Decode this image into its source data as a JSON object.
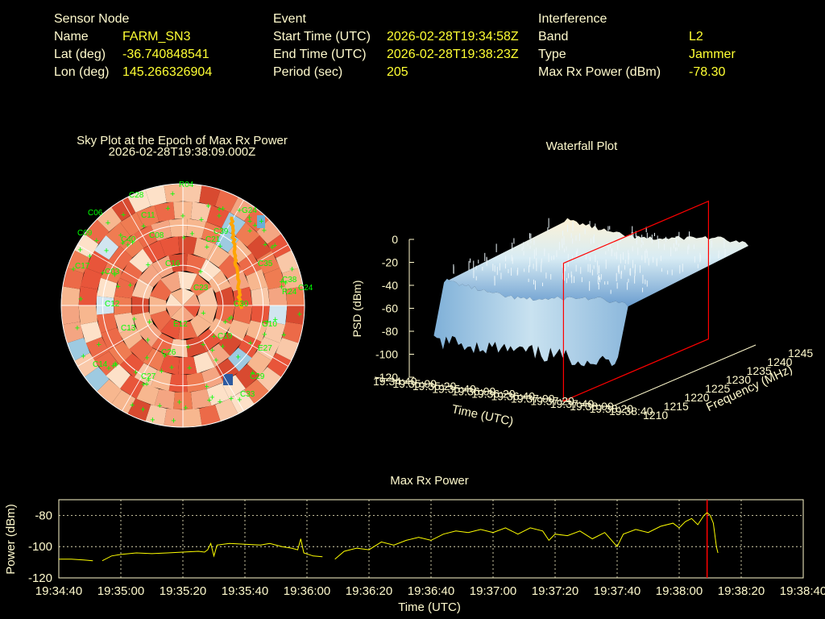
{
  "header": {
    "sensor_node": {
      "heading": "Sensor Node",
      "rows": [
        {
          "label": "Name",
          "value": "FARM_SN3"
        },
        {
          "label": "Lat (deg)",
          "value": "-36.740848541"
        },
        {
          "label": "Lon (deg)",
          "value": "145.266326904"
        }
      ]
    },
    "event": {
      "heading": "Event",
      "rows": [
        {
          "label": "Start Time (UTC)",
          "value": "2026-02-28T19:34:58Z"
        },
        {
          "label": "End Time (UTC)",
          "value": "2026-02-28T19:38:23Z"
        },
        {
          "label": "Period (sec)",
          "value": "205"
        }
      ]
    },
    "interference": {
      "heading": "Interference",
      "rows": [
        {
          "label": "Band",
          "value": "L2"
        },
        {
          "label": "Type",
          "value": "Jammer"
        },
        {
          "label": "Max Rx Power (dBm)",
          "value": "-78.30"
        }
      ]
    }
  },
  "colors": {
    "background": "#000000",
    "label_text": "#fffacd",
    "value_text": "#ffff33",
    "satellite_label": "#00ff00",
    "track": "#ffa500",
    "marker": "#ff0000",
    "line": "#ffff00"
  },
  "chart_data": [
    {
      "type": "scatter",
      "title": "Sky Plot at the Epoch of Max Rx Power",
      "subtitle": "2026-02-28T19:38:09.000Z",
      "satellite_labels": [
        "R04",
        "C06",
        "C09",
        "C24",
        "C33",
        "G24",
        "C16",
        "C03",
        "G10",
        "C17",
        "C13",
        "C19",
        "C14",
        "C29",
        "C08",
        "C21",
        "C28",
        "C35",
        "C26",
        "C23",
        "C12",
        "C30",
        "C27",
        "C38",
        "C39",
        "C40",
        "E12",
        "E27",
        "R24",
        "C11"
      ],
      "grid": true
    },
    {
      "type": "area",
      "title": "Waterfall Plot",
      "zlabel": "PSD (dBm)",
      "xlabel": "Time (UTC)",
      "ylabel": "Frequency (MHz)",
      "z_ticks": [
        "0",
        "-20",
        "-40",
        "-60",
        "-80",
        "-100",
        "-120"
      ],
      "time_ticks": [
        "19:34:40",
        "19:35:00",
        "19:35:20",
        "19:35:40",
        "19:36:00",
        "19:36:20",
        "19:36:40",
        "19:37:00",
        "19:37:20",
        "19:37:40",
        "19:38:00",
        "19:38:20",
        "19:38:40"
      ],
      "freq_ticks": [
        "1210",
        "1215",
        "1220",
        "1225",
        "1230",
        "1235",
        "1240",
        "1245"
      ],
      "zlim": [
        -120,
        0
      ],
      "flim": [
        1210,
        1245
      ],
      "psd_level_dbm": -40,
      "psd_floor_dbm": -100
    },
    {
      "type": "line",
      "title": "Max Rx Power",
      "xlabel": "Time (UTC)",
      "ylabel": "Power (dBm)",
      "x_ticks": [
        "19:34:40",
        "19:35:00",
        "19:35:20",
        "19:35:40",
        "19:36:00",
        "19:36:20",
        "19:36:40",
        "19:37:00",
        "19:37:20",
        "19:37:40",
        "19:38:00",
        "19:38:20",
        "19:38:40"
      ],
      "y_ticks": [
        "-80",
        "-100",
        "-120"
      ],
      "ylim": [
        -120,
        -70
      ],
      "grid": true,
      "marker_time": "19:38:09",
      "series": [
        {
          "segments": [
            [
              [
                "19:34:40",
                -108
              ],
              [
                "19:34:44",
                -108
              ],
              [
                "19:34:48",
                -108.5
              ],
              [
                "19:34:51",
                -109
              ]
            ],
            [
              [
                "19:34:54",
                -109
              ],
              [
                "19:34:57",
                -106
              ],
              [
                "19:35:00",
                -105
              ],
              [
                "19:35:05",
                -104
              ],
              [
                "19:35:10",
                -104.5
              ],
              [
                "19:35:15",
                -104
              ],
              [
                "19:35:20",
                -103.5
              ],
              [
                "19:35:25",
                -103
              ],
              [
                "19:35:27",
                -103.5
              ],
              [
                "19:35:28",
                -102
              ],
              [
                "19:35:29",
                -98
              ],
              [
                "19:35:30",
                -106
              ],
              [
                "19:35:31",
                -99
              ],
              [
                "19:35:35",
                -98
              ],
              [
                "19:35:40",
                -98.5
              ],
              [
                "19:35:45",
                -99
              ],
              [
                "19:35:48",
                -98
              ],
              [
                "19:35:52",
                -100
              ],
              [
                "19:35:55",
                -101
              ],
              [
                "19:35:57",
                -102
              ],
              [
                "19:35:58",
                -95
              ],
              [
                "19:35:59",
                -104
              ],
              [
                "19:36:02",
                -106
              ],
              [
                "19:36:05",
                -106.5
              ]
            ],
            [
              [
                "19:36:09",
                -108
              ],
              [
                "19:36:12",
                -103
              ],
              [
                "19:36:16",
                -101
              ],
              [
                "19:36:20",
                -102
              ],
              [
                "19:36:24",
                -97
              ],
              [
                "19:36:28",
                -99
              ],
              [
                "19:36:32",
                -96
              ],
              [
                "19:36:36",
                -94
              ],
              [
                "19:36:40",
                -96
              ],
              [
                "19:36:44",
                -92
              ],
              [
                "19:36:48",
                -90
              ],
              [
                "19:36:52",
                -91
              ],
              [
                "19:36:56",
                -89
              ],
              [
                "19:37:00",
                -91
              ],
              [
                "19:37:04",
                -88
              ],
              [
                "19:37:08",
                -92
              ],
              [
                "19:37:12",
                -88
              ],
              [
                "19:37:16",
                -90
              ],
              [
                "19:37:18",
                -96
              ],
              [
                "19:37:20",
                -92
              ],
              [
                "19:37:24",
                -93
              ],
              [
                "19:37:28",
                -90
              ],
              [
                "19:37:32",
                -95
              ],
              [
                "19:37:36",
                -91
              ],
              [
                "19:37:40",
                -100
              ],
              [
                "19:37:42",
                -92
              ],
              [
                "19:37:46",
                -89
              ],
              [
                "19:37:50",
                -91
              ],
              [
                "19:37:54",
                -87
              ],
              [
                "19:37:58",
                -85
              ],
              [
                "19:38:00",
                -88
              ],
              [
                "19:38:02",
                -84
              ],
              [
                "19:38:04",
                -82
              ],
              [
                "19:38:06",
                -86
              ],
              [
                "19:38:08",
                -80
              ],
              [
                "19:38:09",
                -78.3
              ],
              [
                "19:38:10",
                -80
              ],
              [
                "19:38:11",
                -85
              ],
              [
                "19:38:12",
                -100
              ],
              [
                "19:38:12.5",
                -104
              ]
            ]
          ]
        }
      ]
    }
  ]
}
